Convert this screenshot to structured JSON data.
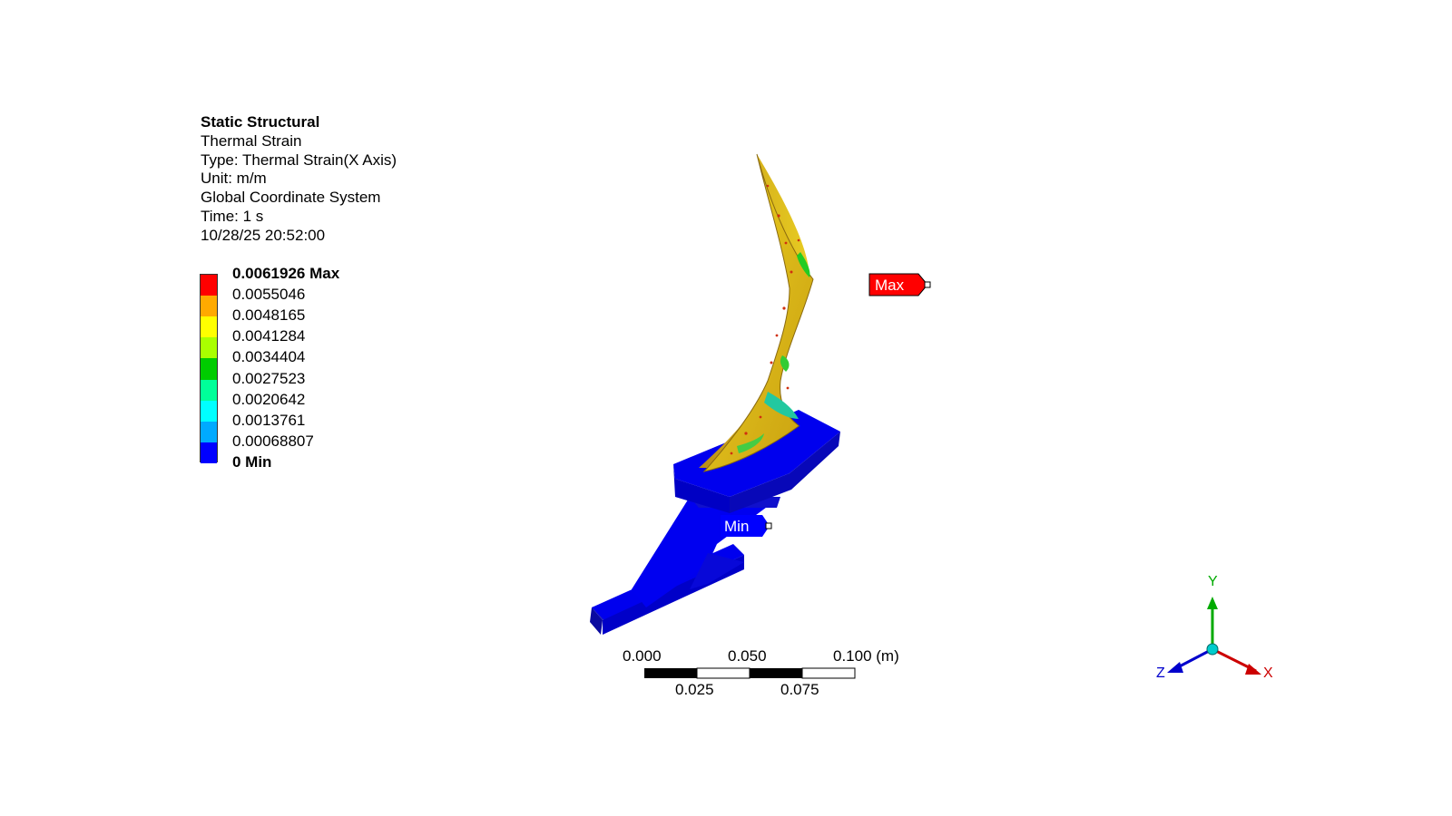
{
  "info": {
    "analysis": "Static Structural",
    "result_name": "Thermal Strain",
    "type": "Type: Thermal Strain(X Axis)",
    "unit": "Unit: m/m",
    "coordinate_system": "Global Coordinate System",
    "time": "Time: 1 s",
    "timestamp": "10/28/25 20:52:00"
  },
  "legend": {
    "max_label": "0.0061926 Max",
    "min_label": "0 Min",
    "levels": [
      "0.0055046",
      "0.0048165",
      "0.0041284",
      "0.0034404",
      "0.0027523",
      "0.0020642",
      "0.0013761",
      "0.00068807"
    ],
    "colors": [
      "#ff0000",
      "#ffaa00",
      "#ffff00",
      "#aaff00",
      "#00cc00",
      "#00ff99",
      "#00ffff",
      "#00aaff",
      "#0000ff"
    ]
  },
  "probes": {
    "max_tag": "Max",
    "min_tag": "Min",
    "max_color": "#ff0000",
    "min_color": "#0000ff"
  },
  "scale_bar": {
    "top_labels": [
      "0.000",
      "0.050",
      "0.100 (m)"
    ],
    "bottom_labels": [
      "0.025",
      "0.075"
    ]
  },
  "triad": {
    "x_label": "X",
    "y_label": "Y",
    "z_label": "Z",
    "x_color": "#cc0000",
    "y_color": "#00aa00",
    "z_color": "#0000cc",
    "origin_color": "#00cccc"
  }
}
